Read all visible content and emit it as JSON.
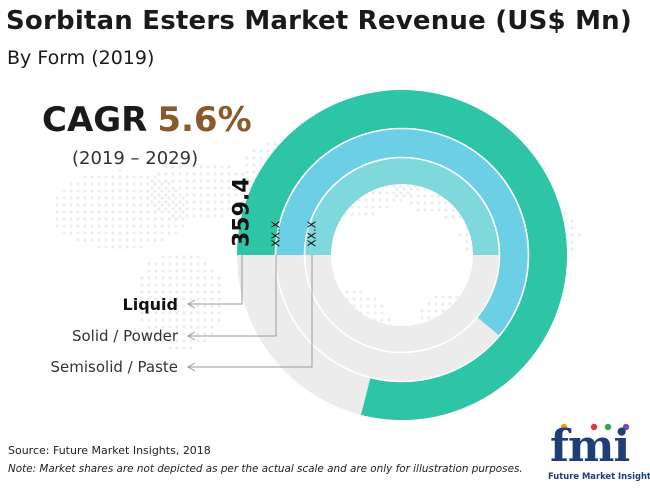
{
  "title": "Sorbitan Esters Market Revenue (US$ Mn)",
  "subtitle": "By Form (2019)",
  "cagr": {
    "label": "CAGR",
    "value": "5.6%",
    "period": "(2019 – 2029)"
  },
  "source": "Source: Future Market Insights, 2018",
  "note": "Note: Market shares are not depicted as per the actual scale and are only for illustration purposes.",
  "logo": {
    "text": "fmi",
    "subtitle": "Future Market Insights"
  },
  "colors": {
    "outer_ring": "#2ec4a6",
    "middle_ring": "#6ccfe6",
    "inner_ring": "#7fd9dc",
    "track": "#ececec",
    "cagr_value": "#8b5a2b",
    "logo": "#1f3e78"
  },
  "chart_data": {
    "type": "radial-bar",
    "title": "Sorbitan Esters Market Revenue (US$ Mn)",
    "subtitle": "By Form (2019)",
    "categories": [
      "Liquid",
      "Solid / Powder",
      "Semisolid / Paste"
    ],
    "series": [
      {
        "values": [
          "359.4",
          "XX.X",
          "XX.X"
        ]
      }
    ],
    "ring_sweep_fraction": [
      0.79,
      0.61,
      0.5
    ]
  }
}
